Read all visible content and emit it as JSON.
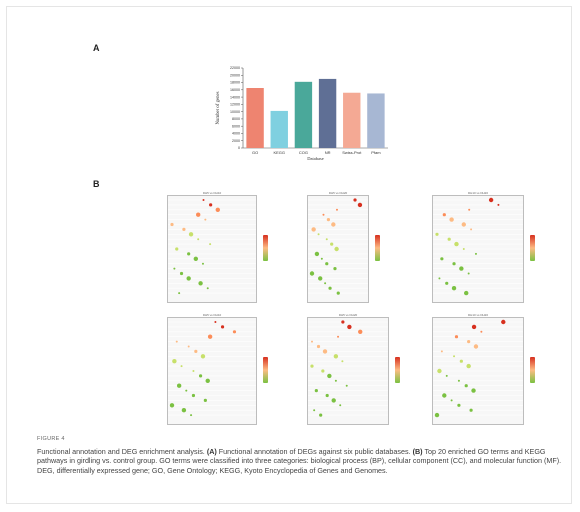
{
  "panel_a_label": "A",
  "panel_b_label": "B",
  "chart_data": {
    "type": "bar",
    "categories": [
      "GO",
      "KEGG",
      "COG",
      "NR",
      "Swiss-Prot",
      "Pfam"
    ],
    "values": [
      16500,
      10200,
      18200,
      19000,
      15200,
      15000
    ],
    "ylabel": "Number of genes",
    "xlabel": "Database",
    "ylim": [
      0,
      22000
    ],
    "yticks": [
      0,
      2000,
      4000,
      6000,
      8000,
      10000,
      12000,
      14000,
      16000,
      18000,
      20000,
      22000
    ],
    "colors": [
      "#ee8470",
      "#7fd0e0",
      "#4aa89a",
      "#5f6f95",
      "#f4a994",
      "#a7b7d3"
    ],
    "grid": false,
    "legend": "none"
  },
  "dot_panels": [
    {
      "title": "DH5 vs DH10"
    },
    {
      "title": "DH5 vs DH20"
    },
    {
      "title": "DH10 vs DH20"
    },
    {
      "title": "DH5 vs DH10"
    },
    {
      "title": "DH5 vs DH20"
    },
    {
      "title": "DH10 vs DH20"
    }
  ],
  "caption": {
    "figure_label": "FIGURE 4",
    "title": "Functional annotation and DEG enrichment analysis.",
    "a_label": "(A)",
    "a_text": "Functional annotation of DEGs against six public databases.",
    "b_label": "(B)",
    "b_text": "Top 20 enriched GO terms and KEGG pathways in girdling vs. control group. GO terms were classified into three categories: biological process (BP), cellular component (CC), and molecular function (MF). DEG, differentially expressed gene; GO, Gene Ontology; KEGG, Kyoto Encyclopedia of Genes and Genomes."
  }
}
